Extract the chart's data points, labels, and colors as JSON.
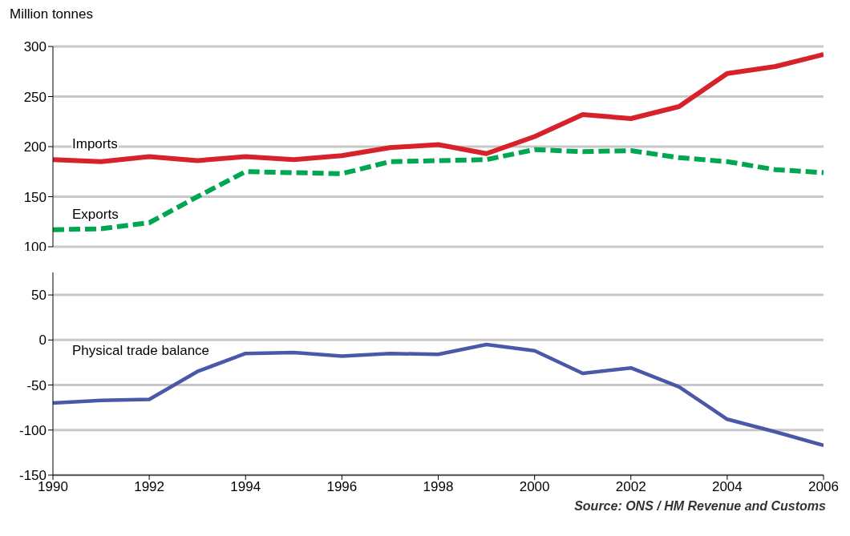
{
  "chart_data": [
    {
      "type": "line",
      "ylabel": "Million tonnes",
      "x": [
        1990,
        1991,
        1992,
        1993,
        1994,
        1995,
        1996,
        1997,
        1998,
        1999,
        2000,
        2001,
        2002,
        2003,
        2004,
        2005,
        2006
      ],
      "xlim": [
        1990,
        2006
      ],
      "xticks": [
        1990,
        1992,
        1994,
        1996,
        1998,
        2000,
        2002,
        2004,
        2006
      ],
      "ylim": [
        100,
        300
      ],
      "yticks": [
        100,
        150,
        200,
        250,
        300
      ],
      "grid": "y",
      "legend": false,
      "tick_labels": "y",
      "marker": "none",
      "series": [
        {
          "name": "Imports",
          "color": "#d7212b",
          "line_style": "solid",
          "values": [
            187,
            185,
            190,
            186,
            190,
            187,
            191,
            199,
            202,
            193,
            210,
            232,
            228,
            240,
            273,
            280,
            292
          ]
        },
        {
          "name": "Exports",
          "color": "#00a651",
          "line_style": "dashed",
          "values": [
            117,
            118,
            124,
            150,
            175,
            174,
            173,
            185,
            186,
            187,
            197,
            195,
            196,
            189,
            185,
            177,
            174
          ]
        }
      ]
    },
    {
      "type": "line",
      "x": [
        1990,
        1991,
        1992,
        1993,
        1994,
        1995,
        1996,
        1997,
        1998,
        1999,
        2000,
        2001,
        2002,
        2003,
        2004,
        2005,
        2006
      ],
      "xlim": [
        1990,
        2006
      ],
      "xticks": [
        1990,
        1992,
        1994,
        1996,
        1998,
        2000,
        2002,
        2004,
        2006
      ],
      "ylim": [
        -150,
        75
      ],
      "yticks": [
        -150,
        -100,
        -50,
        0,
        50
      ],
      "grid": "y",
      "legend": false,
      "marker": "none",
      "annotations": [
        "Source: ONS / HM Revenue and Customs"
      ],
      "series": [
        {
          "name": "Physical trade balance",
          "color": "#4a58a8",
          "line_style": "solid",
          "values": [
            -70,
            -67,
            -66,
            -35,
            -15,
            -14,
            -18,
            -15,
            -16,
            -5,
            -12,
            -37,
            -31,
            -52,
            -88,
            -102,
            -117
          ]
        }
      ]
    }
  ]
}
